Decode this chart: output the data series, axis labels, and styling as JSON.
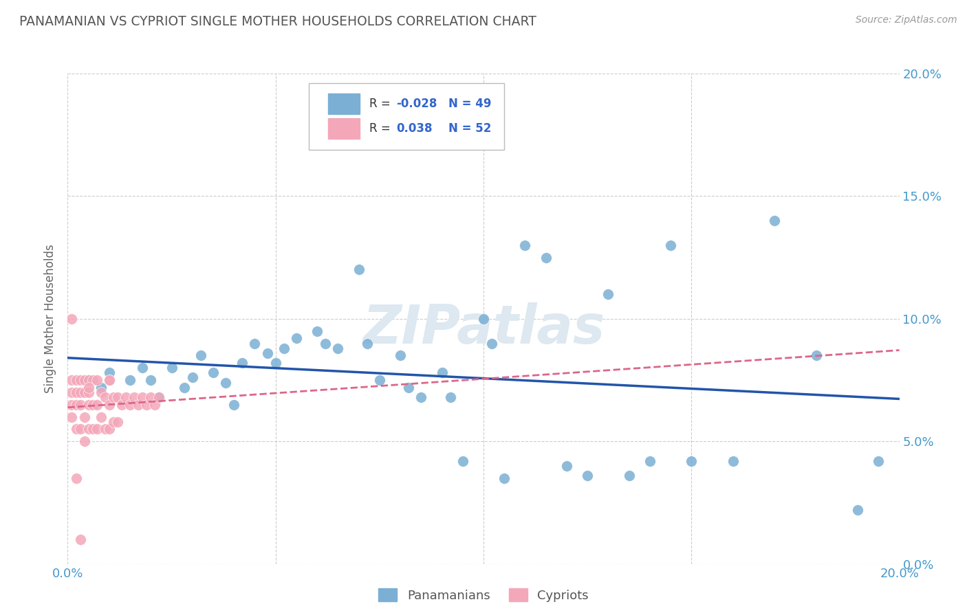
{
  "title": "PANAMANIAN VS CYPRIOT SINGLE MOTHER HOUSEHOLDS CORRELATION CHART",
  "source": "Source: ZipAtlas.com",
  "ylabel": "Single Mother Households",
  "xlim": [
    0.0,
    0.2
  ],
  "ylim": [
    0.0,
    0.2
  ],
  "yticks": [
    0.0,
    0.05,
    0.1,
    0.15,
    0.2
  ],
  "ytick_labels": [
    "0.0%",
    "5.0%",
    "10.0%",
    "15.0%",
    "20.0%"
  ],
  "xticks": [
    0.0,
    0.05,
    0.1,
    0.15,
    0.2
  ],
  "xtick_labels": [
    "0.0%",
    "",
    "",
    "",
    "20.0%"
  ],
  "panamanian_color": "#7bafd4",
  "cypriot_color": "#f4a7b9",
  "panamanian_R": -0.028,
  "panamanian_N": 49,
  "cypriot_R": 0.038,
  "cypriot_N": 52,
  "line_color_blue": "#2255aa",
  "line_color_pink": "#dd6688",
  "watermark": "ZIPatlas",
  "watermark_color": "#dde8f0",
  "background_color": "#ffffff",
  "grid_color": "#cccccc",
  "title_color": "#555555",
  "axis_label_color": "#4499cc",
  "legend_text_color": "#3366cc",
  "panamanian_x": [
    0.005,
    0.008,
    0.01,
    0.015,
    0.018,
    0.02,
    0.022,
    0.025,
    0.028,
    0.03,
    0.032,
    0.035,
    0.038,
    0.04,
    0.042,
    0.045,
    0.048,
    0.05,
    0.052,
    0.055,
    0.06,
    0.062,
    0.065,
    0.07,
    0.072,
    0.075,
    0.08,
    0.082,
    0.085,
    0.09,
    0.092,
    0.095,
    0.1,
    0.102,
    0.105,
    0.11,
    0.115,
    0.12,
    0.125,
    0.13,
    0.135,
    0.14,
    0.145,
    0.15,
    0.16,
    0.17,
    0.18,
    0.19,
    0.195
  ],
  "panamanian_y": [
    0.075,
    0.072,
    0.078,
    0.075,
    0.08,
    0.075,
    0.068,
    0.08,
    0.072,
    0.076,
    0.085,
    0.078,
    0.074,
    0.065,
    0.082,
    0.09,
    0.086,
    0.082,
    0.088,
    0.092,
    0.095,
    0.09,
    0.088,
    0.12,
    0.09,
    0.075,
    0.085,
    0.072,
    0.068,
    0.078,
    0.068,
    0.042,
    0.1,
    0.09,
    0.035,
    0.13,
    0.125,
    0.04,
    0.036,
    0.11,
    0.036,
    0.042,
    0.13,
    0.042,
    0.042,
    0.14,
    0.085,
    0.022,
    0.042
  ],
  "cypriot_x": [
    0.001,
    0.001,
    0.001,
    0.001,
    0.001,
    0.002,
    0.002,
    0.002,
    0.002,
    0.002,
    0.003,
    0.003,
    0.003,
    0.003,
    0.004,
    0.004,
    0.004,
    0.004,
    0.005,
    0.005,
    0.005,
    0.005,
    0.006,
    0.006,
    0.006,
    0.007,
    0.007,
    0.007,
    0.008,
    0.008,
    0.009,
    0.009,
    0.01,
    0.01,
    0.01,
    0.011,
    0.011,
    0.012,
    0.012,
    0.013,
    0.014,
    0.015,
    0.016,
    0.017,
    0.018,
    0.019,
    0.02,
    0.021,
    0.022,
    0.01,
    0.005,
    0.003
  ],
  "cypriot_y": [
    0.075,
    0.07,
    0.065,
    0.06,
    0.1,
    0.075,
    0.07,
    0.065,
    0.055,
    0.035,
    0.075,
    0.07,
    0.065,
    0.055,
    0.075,
    0.07,
    0.06,
    0.05,
    0.075,
    0.07,
    0.065,
    0.055,
    0.075,
    0.065,
    0.055,
    0.075,
    0.065,
    0.055,
    0.07,
    0.06,
    0.068,
    0.055,
    0.075,
    0.065,
    0.055,
    0.068,
    0.058,
    0.068,
    0.058,
    0.065,
    0.068,
    0.065,
    0.068,
    0.065,
    0.068,
    0.065,
    0.068,
    0.065,
    0.068,
    0.075,
    0.072,
    0.01
  ]
}
